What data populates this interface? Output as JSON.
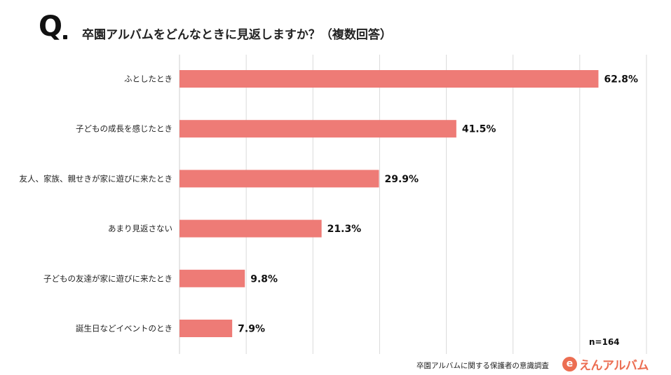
{
  "header": {
    "q_mark": "Q",
    "title": "卒園アルバムをどんなときに見返しますか？（複数回答）"
  },
  "chart_data": {
    "type": "bar",
    "orientation": "horizontal",
    "title": "卒園アルバムをどんなときに見返しますか？（複数回答）",
    "categories": [
      "ふとしたとき",
      "子どもの成長を感じたとき",
      "友人、家族、親せきが家に遊びに来たとき",
      "あまり見返さない",
      "子どもの友達が家に遊びに来たとき",
      "誕生日などイベントのとき"
    ],
    "values": [
      62.8,
      41.5,
      29.9,
      21.3,
      9.8,
      7.9
    ],
    "value_labels": [
      "62.8%",
      "41.5%",
      "29.9%",
      "21.3%",
      "9.8%",
      "7.9%"
    ],
    "xlim": [
      0,
      70
    ],
    "grid": true,
    "bar_color": "#ee7b76",
    "grid_color": "#d9d9d9"
  },
  "footer": {
    "n_label": "n=164",
    "source": "卒園アルバムに関する保護者の意識調査",
    "logo_icon": "e",
    "logo_text": "えんアルバム",
    "logo_color": "#ec6e52"
  }
}
